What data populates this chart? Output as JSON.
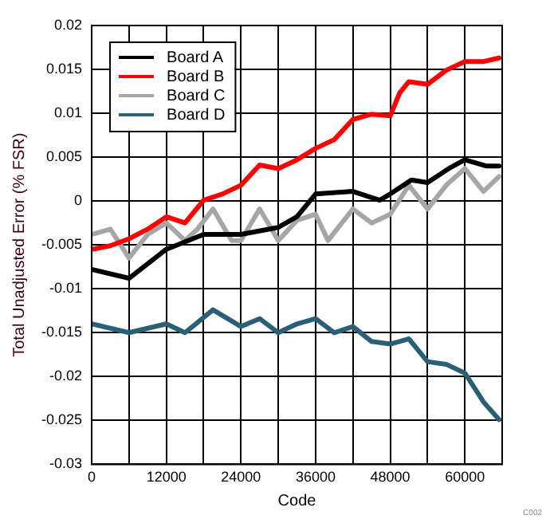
{
  "chart_data": {
    "type": "line",
    "xlabel": "Code",
    "ylabel": "Total Unadjusted Error (% FSR)",
    "xlim": [
      0,
      66000
    ],
    "xticks": [
      0,
      {
        "value": 6000,
        "label": null
      },
      12000,
      {
        "value": 18000,
        "label": null
      },
      24000,
      {
        "value": 30000,
        "label": null
      },
      36000,
      {
        "value": 42000,
        "label": null
      },
      48000,
      {
        "value": 54000,
        "label": null
      },
      60000,
      {
        "value": 66000,
        "label": null
      }
    ],
    "ylim": [
      -0.03,
      0.02
    ],
    "yticks": [
      -0.03,
      -0.025,
      -0.02,
      -0.015,
      -0.01,
      -0.005,
      0,
      0.005,
      0.01,
      0.015,
      0.02
    ],
    "grid": true,
    "legend": "top left",
    "marker": "none",
    "line_style": "solid",
    "annotations": [
      "C002"
    ],
    "series": [
      {
        "name": "Board A",
        "color": "#000000",
        "x": [
          0,
          6000,
          12000,
          18000,
          24000,
          30000,
          33000,
          36000,
          42000,
          46300,
          48000,
          51400,
          54000,
          57400,
          60000,
          63400,
          65500
        ],
        "values": [
          -0.0078,
          -0.0088,
          -0.0055,
          -0.0038,
          -0.0038,
          -0.003,
          -0.0018,
          0.0008,
          0.0011,
          0.0001,
          0.0008,
          0.0024,
          0.0021,
          0.0037,
          0.0047,
          0.004,
          0.004
        ]
      },
      {
        "name": "Board B",
        "color": "#ff0000",
        "x": [
          0,
          3000,
          6000,
          9000,
          12000,
          15000,
          18000,
          21000,
          24000,
          27000,
          30000,
          33000,
          36000,
          39000,
          42000,
          45000,
          48000,
          49500,
          51000,
          54000,
          57000,
          60000,
          63000,
          65500
        ],
        "values": [
          -0.0055,
          -0.0051,
          -0.0043,
          -0.0032,
          -0.0018,
          -0.0025,
          0.0001,
          0.0008,
          0.0018,
          0.0041,
          0.0037,
          0.0047,
          0.006,
          0.007,
          0.0093,
          0.0099,
          0.0097,
          0.0123,
          0.0136,
          0.0133,
          0.0149,
          0.0159,
          0.0159,
          0.0163
        ]
      },
      {
        "name": "Board C",
        "color": "#a6a6a6",
        "x": [
          0,
          3000,
          6000,
          9000,
          12000,
          15000,
          17000,
          19500,
          22500,
          24000,
          27000,
          30000,
          33000,
          36000,
          38000,
          42000,
          45000,
          48000,
          51000,
          54000,
          57000,
          60000,
          63000,
          65500
        ],
        "values": [
          -0.0038,
          -0.0032,
          -0.0065,
          -0.0038,
          -0.0025,
          -0.0045,
          -0.0032,
          -0.0009,
          -0.0045,
          -0.0045,
          -0.0009,
          -0.0045,
          -0.0022,
          -0.0015,
          -0.0045,
          -0.0009,
          -0.0025,
          -0.0015,
          0.0018,
          -0.0009,
          0.0018,
          0.0037,
          0.0011,
          0.0028
        ]
      },
      {
        "name": "Board D",
        "color": "#2a5f78",
        "x": [
          0,
          6000,
          12000,
          15000,
          19500,
          24000,
          27000,
          30000,
          33000,
          36000,
          39000,
          42000,
          45000,
          48000,
          51000,
          54000,
          57000,
          60000,
          63000,
          65500
        ],
        "values": [
          -0.014,
          -0.015,
          -0.014,
          -0.015,
          -0.0124,
          -0.0143,
          -0.0134,
          -0.015,
          -0.014,
          -0.0134,
          -0.015,
          -0.0143,
          -0.016,
          -0.0163,
          -0.0157,
          -0.0183,
          -0.0186,
          -0.0196,
          -0.0229,
          -0.0249
        ]
      }
    ]
  }
}
